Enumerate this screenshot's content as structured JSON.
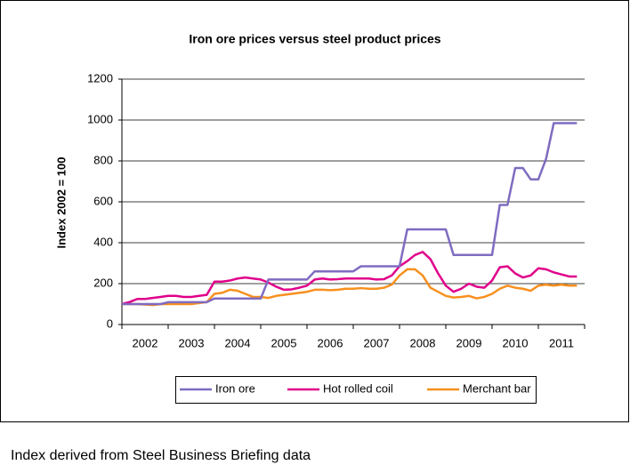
{
  "chart_data": {
    "type": "line",
    "title": "Iron ore prices versus steel product prices",
    "y_label": "Index 2002 = 100",
    "note": "Index derived from Steel Business Briefing data",
    "categories": [
      null,
      null,
      null,
      "2002",
      null,
      null,
      null,
      null,
      null,
      "2003",
      null,
      null,
      null,
      null,
      null,
      "2004",
      null,
      null,
      null,
      null,
      null,
      "2005",
      null,
      null,
      null,
      null,
      null,
      "2006",
      null,
      null,
      null,
      null,
      null,
      "2007",
      null,
      null,
      null,
      null,
      null,
      "2008",
      null,
      null,
      null,
      null,
      null,
      "2009",
      null,
      null,
      null,
      null,
      null,
      "2010",
      null,
      null,
      null,
      null,
      null,
      "2011",
      null,
      null
    ],
    "series": [
      {
        "name": "Iron ore",
        "color": "#7f6bc1",
        "values": [
          100,
          100,
          100,
          100,
          100,
          100,
          109,
          109,
          109,
          109,
          109,
          109,
          127,
          127,
          127,
          127,
          127,
          127,
          127,
          220,
          220,
          220,
          220,
          220,
          220,
          260,
          260,
          260,
          260,
          260,
          260,
          285,
          285,
          285,
          285,
          285,
          285,
          465,
          465,
          465,
          465,
          465,
          465,
          340,
          340,
          340,
          340,
          340,
          340,
          585,
          585,
          765,
          765,
          710,
          710,
          810,
          985,
          985,
          985,
          985
        ]
      },
      {
        "name": "Hot rolled coil",
        "color": "#e0008a",
        "values": [
          100,
          110,
          125,
          125,
          130,
          135,
          140,
          140,
          135,
          135,
          140,
          145,
          210,
          210,
          215,
          225,
          230,
          225,
          220,
          205,
          185,
          170,
          172,
          180,
          190,
          220,
          225,
          220,
          222,
          225,
          225,
          225,
          225,
          220,
          222,
          240,
          285,
          310,
          340,
          355,
          320,
          250,
          190,
          160,
          175,
          200,
          185,
          180,
          215,
          280,
          285,
          250,
          230,
          240,
          275,
          270,
          255,
          245,
          235,
          235
        ]
      },
      {
        "name": "Merchant bar",
        "color": "#f7901e",
        "values": [
          100,
          100,
          100,
          98,
          95,
          100,
          100,
          100,
          100,
          100,
          105,
          110,
          150,
          155,
          170,
          165,
          150,
          135,
          135,
          130,
          140,
          145,
          150,
          155,
          160,
          170,
          170,
          168,
          170,
          175,
          175,
          178,
          175,
          175,
          180,
          195,
          240,
          270,
          270,
          240,
          180,
          160,
          140,
          132,
          135,
          140,
          128,
          135,
          150,
          175,
          190,
          180,
          175,
          165,
          190,
          195,
          190,
          195,
          190,
          190
        ]
      }
    ],
    "ylim": [
      0,
      1200
    ],
    "yticks": [
      0,
      200,
      400,
      600,
      800,
      1000,
      1200
    ],
    "grid": true,
    "legend": "bottom"
  }
}
